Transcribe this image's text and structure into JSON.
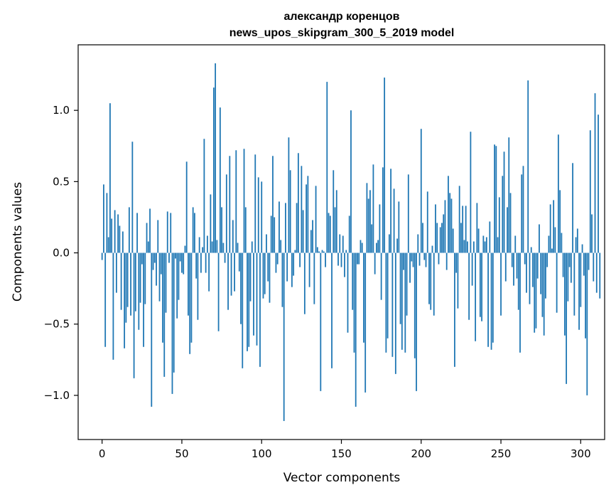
{
  "chart_data": {
    "type": "bar",
    "title": "александр коренцов",
    "subtitle": "news_upos_skipgram_300_5_2019 model",
    "xlabel": "Vector components",
    "ylabel": "Components values",
    "xlim": [
      -15,
      315
    ],
    "ylim": [
      -1.31,
      1.46
    ],
    "xticks": [
      0,
      50,
      100,
      150,
      200,
      250,
      300
    ],
    "xtick_labels": [
      "0",
      "50",
      "100",
      "150",
      "200",
      "250",
      "300"
    ],
    "yticks": [
      -1.0,
      -0.5,
      0.0,
      0.5,
      1.0
    ],
    "ytick_labels": [
      "−1.0",
      "−0.5",
      "0.0",
      "0.5",
      "1.0"
    ],
    "grid": false,
    "bar_color": "#1f77b4",
    "series": [
      {
        "values": [
          -0.05,
          0.48,
          -0.66,
          0.42,
          0.11,
          1.05,
          0.24,
          -0.75,
          0.3,
          -0.28,
          0.27,
          0.19,
          -0.4,
          0.15,
          -0.67,
          -0.49,
          -0.38,
          0.32,
          -0.44,
          0.78,
          -0.88,
          -0.41,
          0.28,
          -0.54,
          -0.35,
          -0.08,
          -0.66,
          -0.36,
          0.21,
          0.08,
          0.31,
          -1.08,
          -0.12,
          -0.07,
          -0.23,
          0.23,
          -0.34,
          -0.15,
          -0.63,
          -0.87,
          -0.42,
          0.29,
          -0.07,
          0.28,
          -0.99,
          -0.84,
          -0.04,
          -0.46,
          -0.33,
          -0.06,
          -0.14,
          -0.15,
          0.05,
          0.64,
          -0.44,
          -0.71,
          -0.63,
          0.32,
          0.28,
          -0.18,
          -0.47,
          0.11,
          -0.14,
          0.04,
          0.8,
          -0.14,
          0.12,
          -0.27,
          0.41,
          0.08,
          1.16,
          1.33,
          0.09,
          -0.55,
          1.02,
          0.32,
          0.07,
          -0.07,
          0.55,
          -0.4,
          0.68,
          -0.3,
          0.23,
          -0.27,
          0.72,
          0.07,
          -0.13,
          -0.5,
          -0.81,
          0.73,
          0.32,
          -0.69,
          -0.66,
          -0.34,
          0.08,
          -0.58,
          0.69,
          -0.65,
          0.53,
          -0.8,
          0.5,
          -0.32,
          -0.29,
          0.13,
          -0.2,
          -0.35,
          0.26,
          0.68,
          0.25,
          -0.14,
          -0.08,
          0.36,
          0.09,
          -0.38,
          -1.18,
          0.35,
          -0.2,
          0.81,
          0.58,
          -0.24,
          -0.16,
          0.02,
          0.35,
          0.7,
          -0.1,
          0.61,
          0.3,
          -0.43,
          0.48,
          0.54,
          -0.24,
          0.16,
          0.23,
          -0.36,
          0.47,
          0.04,
          0.01,
          -0.97,
          0.02,
          0.01,
          -0.1,
          1.2,
          0.28,
          0.26,
          -0.81,
          0.58,
          0.32,
          0.44,
          -0.09,
          0.13,
          -0.1,
          0.12,
          -0.17,
          0.02,
          -0.56,
          0.26,
          1.0,
          -0.4,
          -0.7,
          -1.08,
          -0.08,
          -0.08,
          0.09,
          0.07,
          -0.63,
          -0.98,
          0.49,
          0.38,
          0.44,
          0.2,
          0.62,
          -0.15,
          0.07,
          0.09,
          0.34,
          -0.33,
          0.6,
          1.23,
          -0.7,
          -0.6,
          0.13,
          0.59,
          -0.73,
          0.45,
          -0.85,
          0.1,
          0.36,
          -0.5,
          -0.68,
          -0.12,
          -0.7,
          -0.44,
          0.55,
          -0.21,
          -0.06,
          -0.1,
          -0.74,
          -0.97,
          0.13,
          -0.09,
          0.87,
          0.21,
          -0.05,
          -0.1,
          0.43,
          -0.36,
          -0.4,
          0.05,
          -0.44,
          0.34,
          0.21,
          -0.08,
          0.18,
          0.21,
          0.27,
          0.37,
          -0.12,
          0.54,
          0.42,
          0.38,
          0.17,
          -0.8,
          -0.14,
          -0.39,
          0.47,
          0.21,
          0.33,
          0.09,
          0.33,
          0.08,
          -0.47,
          0.85,
          -0.23,
          0.08,
          -0.62,
          0.35,
          0.17,
          -0.45,
          -0.48,
          0.12,
          0.08,
          0.11,
          -0.66,
          0.22,
          -0.68,
          -0.63,
          0.76,
          0.75,
          0.11,
          0.39,
          -0.44,
          0.54,
          0.71,
          -0.2,
          0.32,
          0.81,
          0.42,
          -0.1,
          -0.23,
          0.12,
          -0.18,
          -0.4,
          -0.7,
          0.55,
          0.61,
          -0.08,
          -0.28,
          1.21,
          -0.36,
          0.04,
          -0.24,
          -0.56,
          -0.53,
          -0.18,
          0.2,
          -0.29,
          -0.45,
          -0.58,
          -0.32,
          -0.1,
          0.12,
          0.34,
          0.03,
          0.37,
          0.18,
          -0.42,
          0.83,
          0.44,
          0.14,
          -0.17,
          -0.58,
          -0.92,
          -0.34,
          -0.1,
          -0.21,
          0.63,
          -0.44,
          0.11,
          0.17,
          -0.54,
          -0.38,
          0.06,
          -0.16,
          -0.6,
          -1.0,
          -0.12,
          0.86,
          0.27,
          -0.2,
          1.12,
          -0.28,
          0.97,
          -0.32
        ]
      }
    ]
  }
}
